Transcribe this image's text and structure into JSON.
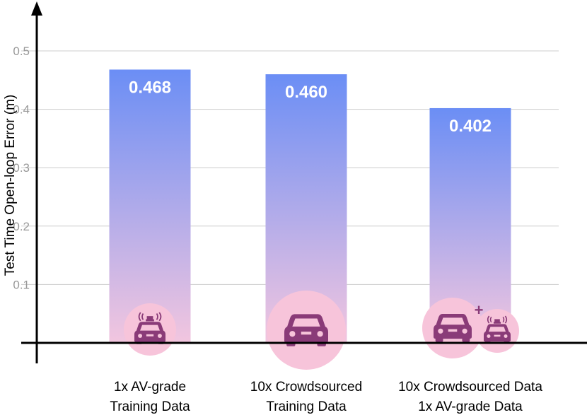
{
  "chart_data": {
    "type": "bar",
    "title": "",
    "xlabel": "",
    "ylabel": "Test Time Open-loop Error (m)",
    "ylim": [
      0,
      0.5
    ],
    "yticks": [
      "0.1",
      "0.2",
      "0.3",
      "0.4",
      "0.5"
    ],
    "grid": true,
    "categories": [
      [
        "1x AV-grade",
        "Training Data"
      ],
      [
        "10x Crowdsourced",
        "Training Data"
      ],
      [
        "10x Crowdsourced Data",
        "1x AV-grade Data"
      ]
    ],
    "values": [
      0.468,
      0.46,
      0.402
    ],
    "value_labels": [
      "0.468",
      "0.460",
      "0.402"
    ],
    "icons": [
      [
        "av-car-icon"
      ],
      [
        "car-icon"
      ],
      [
        "car-icon",
        "plus-icon",
        "av-car-icon"
      ]
    ],
    "plus_label": "+"
  },
  "colors": {
    "bar_top": "#6b8ef5",
    "bar_bottom": "#f2c6df",
    "icon_fill": "#8a3b78",
    "icon_circle": "#f7c4da",
    "grid": "#cccccc",
    "axis": "#000000",
    "tick_label": "#999999",
    "value_label": "#ffffff"
  }
}
